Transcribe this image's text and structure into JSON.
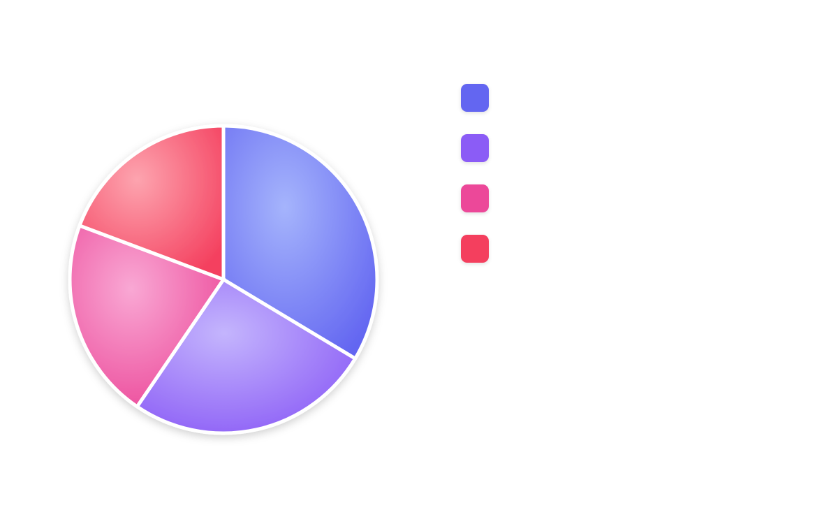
{
  "chart_data": {
    "type": "pie",
    "title": "",
    "categories": [
      "",
      "",
      "",
      ""
    ],
    "values": [
      33.6,
      25.9,
      21.2,
      19.3
    ],
    "value_labels": [
      "",
      "",
      "",
      ""
    ],
    "colors": [
      "#6366f1",
      "#8b5cf6",
      "#ec4899",
      "#f43f5e"
    ],
    "legend_position": "right"
  }
}
